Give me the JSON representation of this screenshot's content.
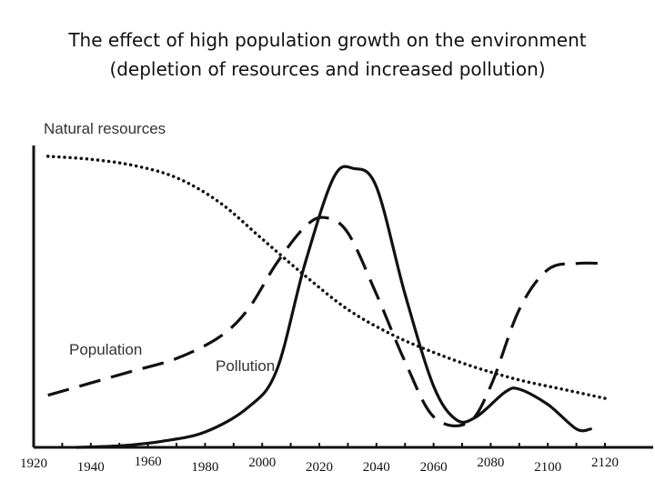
{
  "chart_data": {
    "type": "line",
    "title_line1": "The effect of high population growth on the environment",
    "title_line2": "(depletion of resources and increased pollution)",
    "xlabel": "",
    "ylabel": "",
    "xlim": [
      1920,
      2120
    ],
    "ylim": [
      0,
      100
    ],
    "categories": [
      "1920",
      "1940",
      "1960",
      "1980",
      "2000",
      "2020",
      "2040",
      "2060",
      "2080",
      "2100",
      "2120"
    ],
    "grid": false,
    "series": [
      {
        "name": "Natural resources",
        "style": "dotted",
        "x": [
          1925,
          1940,
          1955,
          1970,
          1985,
          2000,
          2015,
          2030,
          2045,
          2060,
          2075,
          2090,
          2105,
          2120
        ],
        "y": [
          95,
          94,
          92,
          88,
          80,
          68,
          56,
          45,
          37,
          31,
          26,
          22,
          19,
          16
        ]
      },
      {
        "name": "Population",
        "style": "dashed",
        "x": [
          1925,
          1940,
          1955,
          1970,
          1985,
          1995,
          2005,
          2015,
          2022,
          2030,
          2040,
          2050,
          2060,
          2072,
          2080,
          2090,
          2100,
          2110,
          2120
        ],
        "y": [
          17,
          21,
          25,
          29,
          36,
          45,
          60,
          72,
          75,
          70,
          50,
          28,
          10,
          8,
          20,
          45,
          58,
          60,
          60
        ]
      },
      {
        "name": "Pollution",
        "style": "solid",
        "x": [
          1935,
          1950,
          1965,
          1980,
          1995,
          2005,
          2015,
          2025,
          2032,
          2040,
          2050,
          2060,
          2068,
          2075,
          2085,
          2090,
          2100,
          2110,
          2115
        ],
        "y": [
          0,
          0.5,
          2,
          5,
          13,
          25,
          60,
          88,
          91,
          85,
          50,
          20,
          9,
          10,
          18,
          19,
          14,
          6,
          6
        ]
      }
    ]
  }
}
